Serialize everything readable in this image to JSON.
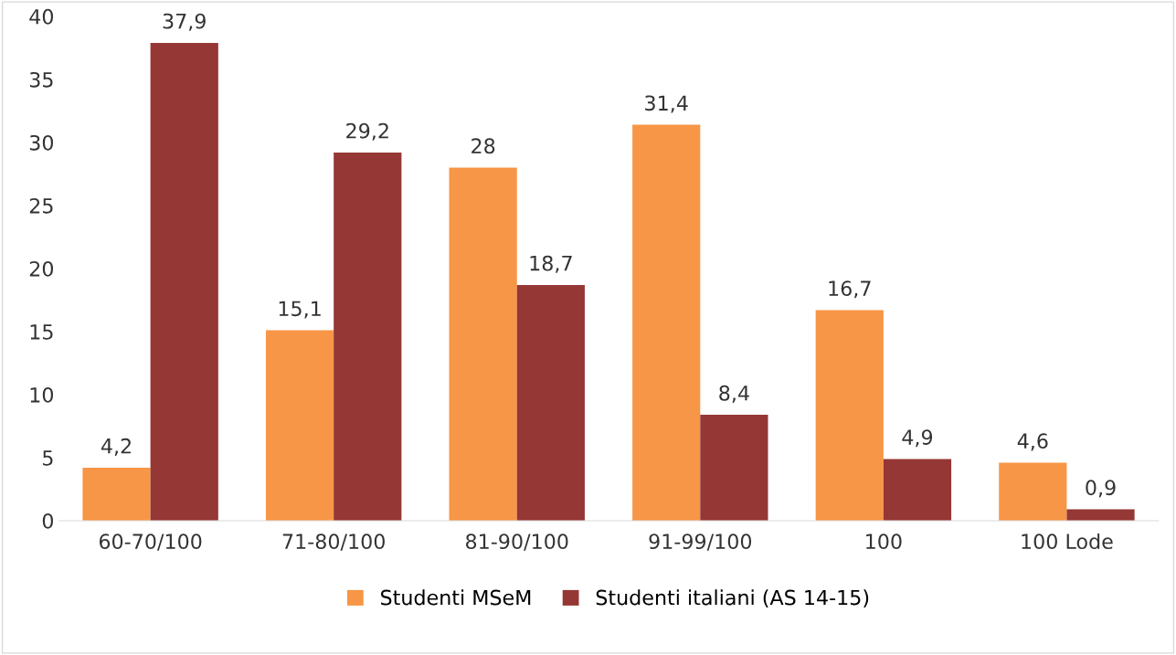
{
  "chart_data": {
    "type": "bar",
    "categories": [
      "60-70/100",
      "71-80/100",
      "81-90/100",
      "91-99/100",
      "100",
      "100 Lode"
    ],
    "series": [
      {
        "name": "Studenti MSeM",
        "color": "#f79646",
        "values": [
          4.2,
          15.1,
          28,
          31.4,
          16.7,
          4.6
        ],
        "value_labels": [
          "4,2",
          "15,1",
          "28",
          "31,4",
          "16,7",
          "4,6"
        ]
      },
      {
        "name": "Studenti italiani (AS 14-15)",
        "color": "#953735",
        "values": [
          37.9,
          29.2,
          18.7,
          8.4,
          4.9,
          0.9
        ],
        "value_labels": [
          "37,9",
          "29,2",
          "18,7",
          "8,4",
          "4,9",
          "0,9"
        ]
      }
    ],
    "ylim": [
      0,
      40
    ],
    "yticks": [
      0,
      5,
      10,
      15,
      20,
      25,
      30,
      35,
      40
    ],
    "grid": false,
    "legend": "bottom"
  }
}
